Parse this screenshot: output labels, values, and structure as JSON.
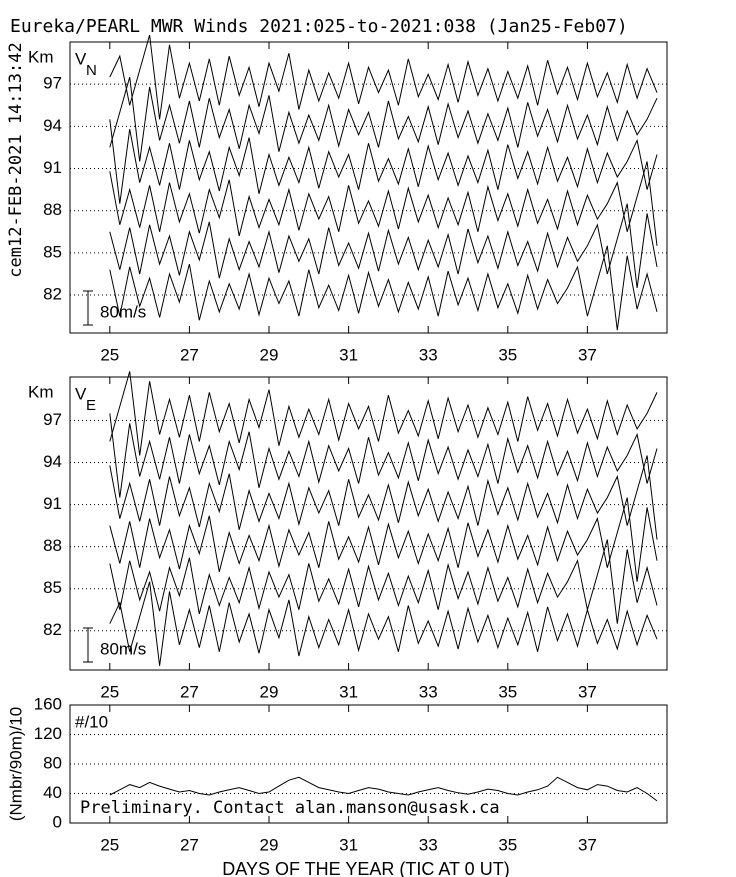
{
  "chart_data": [
    {
      "type": "line",
      "title": "Eureka/PEARL MWR Winds 2021:025-to-2021:038 (Jan25-Feb07)",
      "timestamp": "cem12-FEB-2021 14:13:42",
      "panel_label": "V",
      "panel_label_sub": "N",
      "ylabel": "Km",
      "scale_label": "80m/s",
      "xlim": [
        24,
        39
      ],
      "xticks": [
        25,
        27,
        29,
        31,
        33,
        35,
        37
      ],
      "ylim": [
        79.3,
        100
      ],
      "yticks": [
        82,
        85,
        88,
        91,
        94,
        97
      ],
      "grid": true,
      "x": [
        25,
        25.25,
        25.5,
        25.75,
        26,
        26.25,
        26.5,
        26.75,
        27,
        27.25,
        27.5,
        27.75,
        28,
        28.25,
        28.5,
        28.75,
        29,
        29.25,
        29.5,
        29.75,
        30,
        30.25,
        30.5,
        30.75,
        31,
        31.25,
        31.5,
        31.75,
        32,
        32.25,
        32.5,
        32.75,
        33,
        33.25,
        33.5,
        33.75,
        34,
        34.25,
        34.5,
        34.75,
        35,
        35.25,
        35.5,
        35.75,
        36,
        36.25,
        36.5,
        36.75,
        37,
        37.25,
        37.5,
        37.75,
        38,
        38.25,
        38.5,
        38.75
      ],
      "series": [
        {
          "color": "#000000",
          "values": [
            97.5,
            99,
            95.5,
            98,
            100.5,
            94.5,
            99.8,
            96,
            98.5,
            95.8,
            98.8,
            95.5,
            99,
            96.2,
            98.2,
            95.4,
            98.5,
            96.5,
            99.2,
            95.2,
            98,
            95.8,
            97.8,
            96,
            98.5,
            95.6,
            98.2,
            96.4,
            98,
            95.5,
            98.8,
            96.1,
            97.7,
            95.9,
            98.4,
            95.7,
            98.6,
            96.2,
            98.1,
            95.8,
            97.9,
            96,
            98.3,
            95.5,
            98.7,
            96.3,
            98.2,
            95.9,
            98.5,
            96.1,
            97.8,
            95.7,
            98.4,
            96,
            98.1,
            96.4
          ]
        },
        {
          "color": "#000000",
          "values": [
            92.5,
            95,
            97.5,
            91.5,
            96.8,
            93,
            95.5,
            92.8,
            95.8,
            92.5,
            96,
            93.2,
            95.2,
            92.4,
            95.5,
            93.5,
            96.2,
            92.2,
            95,
            92.8,
            94.8,
            93,
            95.5,
            92.6,
            95.2,
            93.4,
            95,
            92.5,
            95.8,
            93.1,
            94.7,
            92.9,
            95.4,
            92.7,
            95.6,
            93.2,
            95.1,
            92.8,
            94.9,
            93,
            95.3,
            92.5,
            95.7,
            93.3,
            95.2,
            92.9,
            95.5,
            93.1,
            94.8,
            92.7,
            95.4,
            93,
            95.1,
            93.4,
            94.5,
            96
          ]
        },
        {
          "color": "#000000",
          "values": [
            94.5,
            88.5,
            93.8,
            90,
            92.5,
            89.8,
            92.8,
            89.5,
            93,
            90.2,
            92.2,
            89.4,
            92.5,
            90.5,
            93.2,
            89.2,
            92,
            89.8,
            91.8,
            90,
            92.5,
            89.6,
            92.2,
            90.4,
            92,
            89.5,
            92.8,
            90.1,
            91.7,
            89.9,
            92.4,
            89.7,
            92.6,
            90.2,
            92.1,
            89.8,
            91.9,
            90,
            92.3,
            89.5,
            92.7,
            90.3,
            92.2,
            89.9,
            92.5,
            90.1,
            91.8,
            89.7,
            92.4,
            90,
            92.1,
            90.4,
            91.5,
            93,
            89.5,
            92
          ]
        },
        {
          "color": "#000000",
          "values": [
            90.8,
            87,
            89.5,
            86.8,
            89.8,
            86.5,
            90,
            87.2,
            89.2,
            86.4,
            89.5,
            87.5,
            90.2,
            86.2,
            89,
            86.8,
            88.8,
            87,
            89.5,
            86.6,
            89.2,
            87.4,
            89,
            86.5,
            89.8,
            87.1,
            88.7,
            86.9,
            89.4,
            86.7,
            89.6,
            87.2,
            89.1,
            86.8,
            88.9,
            87,
            89.3,
            86.5,
            89.7,
            87.3,
            89.2,
            86.9,
            89.5,
            87.1,
            88.8,
            86.7,
            89.4,
            87,
            89.1,
            87.4,
            88.5,
            90,
            86.5,
            89,
            91.5,
            85.5
          ]
        },
        {
          "color": "#000000",
          "values": [
            86.5,
            83.8,
            86.8,
            83.5,
            87,
            84.2,
            86.2,
            83.4,
            86.5,
            84.5,
            87.2,
            83.2,
            86,
            83.8,
            85.8,
            84,
            86.5,
            83.6,
            86.2,
            84.4,
            86,
            83.5,
            86.8,
            84.1,
            85.7,
            83.9,
            86.4,
            83.7,
            86.6,
            84.2,
            86.1,
            83.8,
            85.9,
            84,
            86.3,
            83.5,
            86.7,
            84.3,
            86.2,
            83.9,
            86.5,
            84.1,
            85.8,
            83.7,
            86.4,
            84,
            86.1,
            84.4,
            85.5,
            87,
            83.5,
            86,
            88.5,
            82.5,
            87.8,
            84
          ]
        },
        {
          "color": "#000000",
          "values": [
            83.8,
            80.5,
            84,
            81.2,
            83.2,
            80.4,
            83.5,
            81.5,
            84.2,
            80.2,
            83,
            80.8,
            82.8,
            81,
            83.5,
            80.6,
            83.2,
            81.4,
            83,
            80.5,
            83.8,
            81.1,
            82.7,
            80.9,
            83.4,
            80.7,
            83.6,
            81.2,
            83.1,
            80.8,
            82.9,
            81,
            83.3,
            80.5,
            83.7,
            81.3,
            83.2,
            80.9,
            83.5,
            81.1,
            82.8,
            80.7,
            83.4,
            81,
            83.1,
            81.4,
            82.5,
            84,
            80.5,
            83,
            85.5,
            79.5,
            84.8,
            81,
            83.5,
            80.8
          ]
        }
      ]
    },
    {
      "type": "line",
      "panel_label": "V",
      "panel_label_sub": "E",
      "ylabel": "Km",
      "scale_label": "80m/s",
      "xlim": [
        24,
        39
      ],
      "xticks": [
        25,
        27,
        29,
        31,
        33,
        35,
        37
      ],
      "ylim": [
        79.2,
        100.1
      ],
      "yticks": [
        82,
        85,
        88,
        91,
        94,
        97
      ],
      "grid": true,
      "x": [
        25,
        25.25,
        25.5,
        25.75,
        26,
        26.25,
        26.5,
        26.75,
        27,
        27.25,
        27.5,
        27.75,
        28,
        28.25,
        28.5,
        28.75,
        29,
        29.25,
        29.5,
        29.75,
        30,
        30.25,
        30.5,
        30.75,
        31,
        31.25,
        31.5,
        31.75,
        32,
        32.25,
        32.5,
        32.75,
        33,
        33.25,
        33.5,
        33.75,
        34,
        34.25,
        34.5,
        34.75,
        35,
        35.25,
        35.5,
        35.75,
        36,
        36.25,
        36.5,
        36.75,
        37,
        37.25,
        37.5,
        37.75,
        38,
        38.25,
        38.5,
        38.75
      ],
      "series": [
        {
          "color": "#000000",
          "values": [
            95.5,
            98,
            100.5,
            94.5,
            99.8,
            96,
            98.5,
            95.8,
            98.8,
            95.5,
            99,
            96.2,
            98.2,
            95.4,
            98.5,
            96.5,
            99.2,
            95.2,
            98,
            95.8,
            97.8,
            96,
            98.5,
            95.6,
            98.2,
            96.4,
            98,
            95.5,
            98.8,
            96.1,
            97.7,
            95.9,
            98.4,
            95.7,
            98.6,
            96.2,
            98.1,
            95.8,
            97.9,
            96,
            98.3,
            95.5,
            98.7,
            96.3,
            98.2,
            95.9,
            98.5,
            96.1,
            97.8,
            95.7,
            98.4,
            96,
            98.1,
            96.4,
            97.5,
            99
          ]
        },
        {
          "color": "#000000",
          "values": [
            97.5,
            91.5,
            96.8,
            93,
            95.5,
            92.8,
            95.8,
            92.5,
            96,
            93.2,
            95.2,
            92.4,
            95.5,
            93.5,
            96.2,
            92.2,
            95,
            92.8,
            94.8,
            93,
            95.5,
            92.6,
            95.2,
            93.4,
            95,
            92.5,
            95.8,
            93.1,
            94.7,
            92.9,
            95.4,
            92.7,
            95.6,
            93.2,
            95.1,
            92.8,
            94.9,
            93,
            95.3,
            92.5,
            95.7,
            93.3,
            95.2,
            92.9,
            95.5,
            93.1,
            94.8,
            92.7,
            95.4,
            93,
            95.1,
            93.4,
            94.5,
            96,
            92.5,
            95
          ]
        },
        {
          "color": "#000000",
          "values": [
            93.8,
            90,
            92.5,
            89.8,
            92.8,
            89.5,
            93,
            90.2,
            92.2,
            89.4,
            92.5,
            90.5,
            93.2,
            89.2,
            92,
            89.8,
            91.8,
            90,
            92.5,
            89.6,
            92.2,
            90.4,
            92,
            89.5,
            92.8,
            90.1,
            91.7,
            89.9,
            92.4,
            89.7,
            92.6,
            90.2,
            92.1,
            89.8,
            91.9,
            90,
            92.3,
            89.5,
            92.7,
            90.3,
            92.2,
            89.9,
            92.5,
            90.1,
            91.8,
            89.7,
            92.4,
            90,
            92.1,
            90.4,
            91.5,
            93,
            89.5,
            92,
            94.5,
            88.5
          ]
        },
        {
          "color": "#000000",
          "values": [
            89.5,
            86.8,
            89.8,
            86.5,
            90,
            87.2,
            89.2,
            86.4,
            89.5,
            87.5,
            90.2,
            86.2,
            89,
            86.8,
            88.8,
            87,
            89.5,
            86.6,
            89.2,
            87.4,
            89,
            86.5,
            89.8,
            87.1,
            88.7,
            86.9,
            89.4,
            86.7,
            89.6,
            87.2,
            89.1,
            86.8,
            88.9,
            87,
            89.3,
            86.5,
            89.7,
            87.3,
            89.2,
            86.9,
            89.5,
            87.1,
            88.8,
            86.7,
            89.4,
            87,
            89.1,
            87.4,
            88.5,
            90,
            86.5,
            89,
            91.5,
            85.5,
            90.8,
            87
          ]
        },
        {
          "color": "#000000",
          "values": [
            86.8,
            83.5,
            87,
            84.2,
            86.2,
            83.4,
            86.5,
            84.5,
            87.2,
            83.2,
            86,
            83.8,
            85.8,
            84,
            86.5,
            83.6,
            86.2,
            84.4,
            86,
            83.5,
            86.8,
            84.1,
            85.7,
            83.9,
            86.4,
            83.7,
            86.6,
            84.2,
            86.1,
            83.8,
            85.9,
            84,
            86.3,
            83.5,
            86.7,
            84.3,
            86.2,
            83.9,
            86.5,
            84.1,
            85.8,
            83.7,
            86.4,
            84,
            86.1,
            84.4,
            85.5,
            87,
            83.5,
            86,
            88.5,
            82.5,
            87.8,
            84,
            86.5,
            83.8
          ]
        },
        {
          "color": "#000000",
          "values": [
            82.5,
            84,
            80.5,
            83,
            85.5,
            79.5,
            84.8,
            81,
            83.5,
            80.8,
            83.8,
            80.5,
            84,
            81.2,
            83.2,
            80.4,
            83.5,
            81.5,
            84.2,
            80.2,
            83,
            80.8,
            82.8,
            81,
            83.5,
            80.6,
            83.2,
            81.4,
            83,
            80.5,
            83.8,
            81.1,
            82.7,
            80.9,
            83.4,
            80.7,
            83.6,
            81.2,
            83.1,
            80.8,
            82.9,
            81,
            83.3,
            80.5,
            83.7,
            81.3,
            83.2,
            80.9,
            83.5,
            81.1,
            82.8,
            80.7,
            83.4,
            81,
            83.1,
            81.4
          ]
        }
      ]
    },
    {
      "type": "line",
      "panel_label": "#/10",
      "ylabel": "(Nmbr/90m)/10",
      "note": "Preliminary. Contact alan.manson@usask.ca",
      "xlabel": "DAYS OF THE YEAR (TIC AT 0 UT)",
      "xlim": [
        24,
        39
      ],
      "xticks": [
        25,
        27,
        29,
        31,
        33,
        35,
        37
      ],
      "ylim": [
        0,
        160
      ],
      "yticks": [
        0,
        40,
        80,
        120,
        160
      ],
      "grid": true,
      "x": [
        25,
        25.25,
        25.5,
        25.75,
        26,
        26.25,
        26.5,
        26.75,
        27,
        27.25,
        27.5,
        27.75,
        28,
        28.25,
        28.5,
        28.75,
        29,
        29.25,
        29.5,
        29.75,
        30,
        30.25,
        30.5,
        30.75,
        31,
        31.25,
        31.5,
        31.75,
        32,
        32.25,
        32.5,
        32.75,
        33,
        33.25,
        33.5,
        33.75,
        34,
        34.25,
        34.5,
        34.75,
        35,
        35.25,
        35.5,
        35.75,
        36,
        36.25,
        36.5,
        36.75,
        37,
        37.25,
        37.5,
        37.75,
        38,
        38.25,
        38.5,
        38.75
      ],
      "series": [
        {
          "color": "#000000",
          "values": [
            38,
            45,
            52,
            48,
            55,
            50,
            46,
            42,
            44,
            40,
            38,
            42,
            45,
            48,
            44,
            40,
            42,
            50,
            58,
            62,
            55,
            48,
            45,
            42,
            40,
            44,
            48,
            46,
            42,
            40,
            38,
            42,
            45,
            48,
            44,
            41,
            39,
            42,
            46,
            44,
            40,
            38,
            42,
            45,
            50,
            62,
            55,
            48,
            45,
            52,
            50,
            44,
            42,
            48,
            40,
            30
          ]
        }
      ]
    }
  ]
}
